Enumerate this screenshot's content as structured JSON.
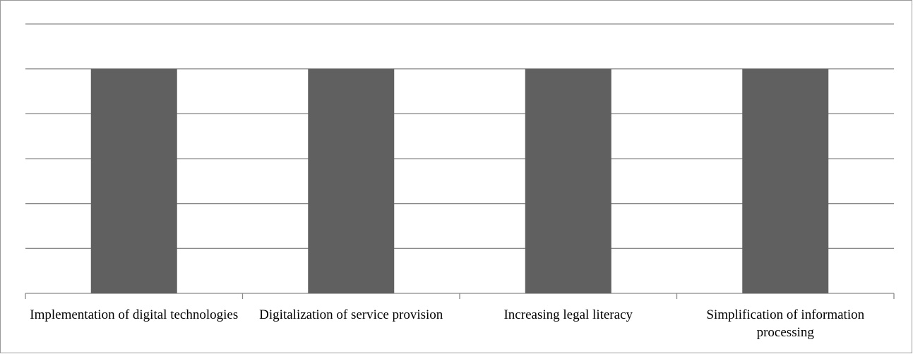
{
  "chart_data": {
    "type": "bar",
    "categories": [
      "Implementation of digital technologies",
      "Digitalization of service provision",
      "Increasing legal literacy",
      "Simplification of information processing"
    ],
    "values": [
      5,
      5,
      5,
      5
    ],
    "color": "#606060",
    "ylim": [
      0,
      6
    ],
    "yticks": [
      0,
      1,
      2,
      3,
      4,
      5,
      6
    ],
    "grid": true
  }
}
